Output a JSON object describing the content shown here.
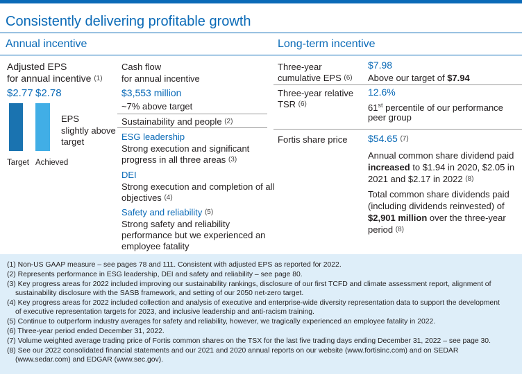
{
  "title": "Consistently delivering profitable growth",
  "annual": {
    "header": "Annual incentive",
    "eps_label_1": "Adjusted EPS",
    "eps_label_2": "for annual incentive",
    "eps_ref": "(1)",
    "eps_target_value": "$2.77",
    "eps_achieved_value": "$2.78",
    "eps_note_1": "EPS",
    "eps_note_2": "slightly above",
    "eps_note_3": "target",
    "target_label": "Target",
    "achieved_label": "Achieved",
    "bar_values": {
      "target": 2.77,
      "achieved": 2.78
    },
    "colors": {
      "target_bar": "#1a73b0",
      "achieved_bar": "#41aee6"
    },
    "cash_label_1": "Cash flow",
    "cash_label_2": "for annual incentive",
    "cash_value": "$3,553 million",
    "cash_note": "~7% above target",
    "sust_label": "Sustainability and people",
    "sust_ref": "(2)",
    "esg_title": "ESG leadership",
    "esg_text_1": "Strong execution and significant",
    "esg_text_2": "progress in all three areas",
    "esg_ref": "(3)",
    "dei_title": "DEI",
    "dei_text_1": "Strong execution and completion of all",
    "dei_text_2": "objectives",
    "dei_ref": "(4)",
    "safety_title": "Safety and reliability",
    "safety_ref": "(5)",
    "safety_text_1": "Strong safety and reliability",
    "safety_text_2": "performance but we experienced an",
    "safety_text_3": "employee fatality"
  },
  "longterm": {
    "header": "Long-term incentive",
    "eps_label_1": "Three-year",
    "eps_label_2": "cumulative EPS",
    "eps_ref": "(6)",
    "eps_value": "$7.98",
    "eps_note_pre": "Above our target of ",
    "eps_note_bold": "$7.94",
    "tsr_label_1": "Three-year relative",
    "tsr_label_2": "TSR",
    "tsr_ref": "(6)",
    "tsr_value": "12.6%",
    "tsr_note_num": "61",
    "tsr_note_sup": "st",
    "tsr_note_1": " percentile of our performance",
    "tsr_note_2": "peer group",
    "share_label": "Fortis share price",
    "share_value": "$54.65",
    "share_ref": "(7)",
    "div_1": "Annual common share dividend paid",
    "div_2_bold": "increased",
    "div_2_rest": " to $1.94 in 2020, $2.05 in",
    "div_3": "2021 and $2.17 in 2022",
    "div_ref": "(8)",
    "tot_1": "Total common share dividends paid",
    "tot_2": "(including dividends reinvested) of",
    "tot_3_bold": "$2,901 million",
    "tot_3_rest": " over the three-year",
    "tot_4": "period",
    "tot_ref": "(8)"
  },
  "footnotes": [
    "(1) Non-US GAAP measure – see pages 78 and 111. Consistent with adjusted EPS as reported for 2022.",
    "(2) Represents performance in ESG leadership, DEI and safety and reliability – see page 80.",
    "(3) Key progress areas for 2022 included improving our sustainability rankings, disclosure of our first TCFD and climate assessment report, alignment of",
    "sustainability disclosure with the SASB framework, and setting of our 2050 net-zero target.",
    "(4) Key progress areas for 2022 included collection and analysis of executive and enterprise-wide diversity representation data to support the development",
    "of executive representation targets for 2023, and inclusive leadership and anti-racism training.",
    "(5) Continue to outperform industry averages for safety and reliability, however, we tragically experienced an employee fatality in 2022.",
    "(6) Three-year period ended December 31, 2022.",
    "(7) Volume weighted average trading price of Fortis common shares on the TSX for the last five trading days ending December 31, 2022 – see page 30.",
    "(8) See our 2022 consolidated financial statements and our 2021 and 2020 annual reports on our website (www.fortisinc.com) and on SEDAR",
    "(www.sedar.com) and EDGAR (www.sec.gov)."
  ]
}
